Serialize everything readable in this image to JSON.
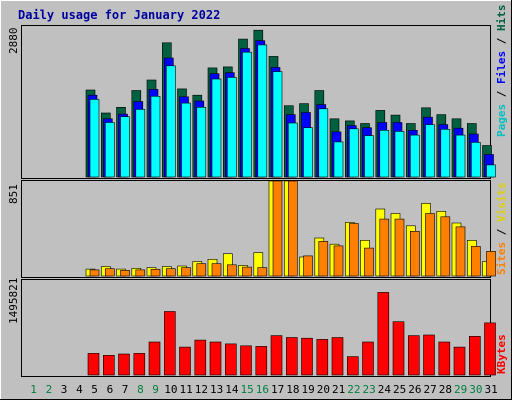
{
  "title": "Daily usage for January 2022",
  "colors": {
    "background": "#c0c0c0",
    "panel": "#c0c0c0",
    "title": "#0000a0",
    "hits": "#006040",
    "files": "#0000ff",
    "pages": "#00ffff",
    "visits": "#ffff00",
    "sites": "#ff8000",
    "kbytes": "#ff0000",
    "weekend_label": "#008040",
    "weekday_label": "#000000"
  },
  "legend": {
    "pages": "Pages",
    "files": "Files",
    "hits": "Hits",
    "sites": "Sites",
    "visits": "Visits",
    "kbytes": "KBytes",
    "separator": " / "
  },
  "chart_data": [
    {
      "type": "bar",
      "title": "Daily usage for January 2022",
      "categories": [
        "1",
        "2",
        "3",
        "4",
        "5",
        "6",
        "7",
        "8",
        "9",
        "10",
        "11",
        "12",
        "13",
        "14",
        "15",
        "16",
        "17",
        "18",
        "19",
        "20",
        "21",
        "22",
        "23",
        "24",
        "25",
        "26",
        "27",
        "28",
        "29",
        "30",
        "31"
      ],
      "weekend_days": [
        "1",
        "2",
        "8",
        "9",
        "15",
        "16",
        "22",
        "23",
        "29",
        "30"
      ],
      "y_max_label": "2880",
      "ylim": [
        0,
        2880
      ],
      "series": [
        {
          "name": "Hits",
          "values": [
            0,
            0,
            0,
            0,
            1660,
            1220,
            1330,
            1650,
            1850,
            2560,
            1680,
            1560,
            2080,
            2100,
            2630,
            2800,
            2300,
            1360,
            1400,
            1650,
            1110,
            1070,
            1020,
            1270,
            1180,
            1020,
            1320,
            1190,
            1110,
            1020,
            600
          ]
        },
        {
          "name": "Files",
          "values": [
            0,
            0,
            0,
            0,
            1560,
            1110,
            1200,
            1440,
            1670,
            2270,
            1530,
            1450,
            1970,
            1990,
            2450,
            2600,
            2090,
            1190,
            1230,
            1380,
            860,
            980,
            940,
            1040,
            1040,
            890,
            1140,
            1000,
            930,
            820,
            430
          ]
        },
        {
          "name": "Pages",
          "values": [
            0,
            0,
            0,
            0,
            1480,
            1040,
            1150,
            1290,
            1540,
            2120,
            1410,
            1330,
            1870,
            1900,
            2380,
            2520,
            2010,
            1030,
            940,
            1300,
            670,
            920,
            790,
            890,
            870,
            800,
            1000,
            910,
            800,
            660,
            230
          ]
        }
      ]
    },
    {
      "type": "bar",
      "categories": [
        "1",
        "2",
        "3",
        "4",
        "5",
        "6",
        "7",
        "8",
        "9",
        "10",
        "11",
        "12",
        "13",
        "14",
        "15",
        "16",
        "17",
        "18",
        "19",
        "20",
        "21",
        "22",
        "23",
        "24",
        "25",
        "26",
        "27",
        "28",
        "29",
        "30",
        "31"
      ],
      "y_max_label": "851",
      "ylim": [
        0,
        851
      ],
      "series": [
        {
          "name": "Visits",
          "values": [
            0,
            0,
            0,
            0,
            62,
            85,
            62,
            69,
            75,
            85,
            90,
            130,
            150,
            200,
            95,
            210,
            851,
            851,
            170,
            340,
            285,
            480,
            320,
            600,
            560,
            450,
            650,
            580,
            475,
            320,
            130
          ]
        },
        {
          "name": "Sites",
          "values": [
            0,
            0,
            0,
            0,
            55,
            65,
            50,
            55,
            60,
            65,
            75,
            110,
            110,
            100,
            80,
            75,
            851,
            851,
            180,
            310,
            270,
            470,
            250,
            510,
            510,
            400,
            560,
            530,
            440,
            265,
            220
          ]
        }
      ]
    },
    {
      "type": "bar",
      "categories": [
        "1",
        "2",
        "3",
        "4",
        "5",
        "6",
        "7",
        "8",
        "9",
        "10",
        "11",
        "12",
        "13",
        "14",
        "15",
        "16",
        "17",
        "18",
        "19",
        "20",
        "21",
        "22",
        "23",
        "24",
        "25",
        "26",
        "27",
        "28",
        "29",
        "30",
        "31"
      ],
      "y_max_label": "1495821",
      "ylim": [
        0,
        1495821
      ],
      "series": [
        {
          "name": "KBytes",
          "values": [
            0,
            0,
            0,
            0,
            340000,
            310000,
            330000,
            340000,
            520000,
            1000000,
            440000,
            550000,
            520000,
            490000,
            460000,
            450000,
            620000,
            590000,
            580000,
            560000,
            590000,
            290000,
            520000,
            1300000,
            840000,
            620000,
            630000,
            520000,
            440000,
            610000,
            820000
          ]
        }
      ]
    }
  ]
}
